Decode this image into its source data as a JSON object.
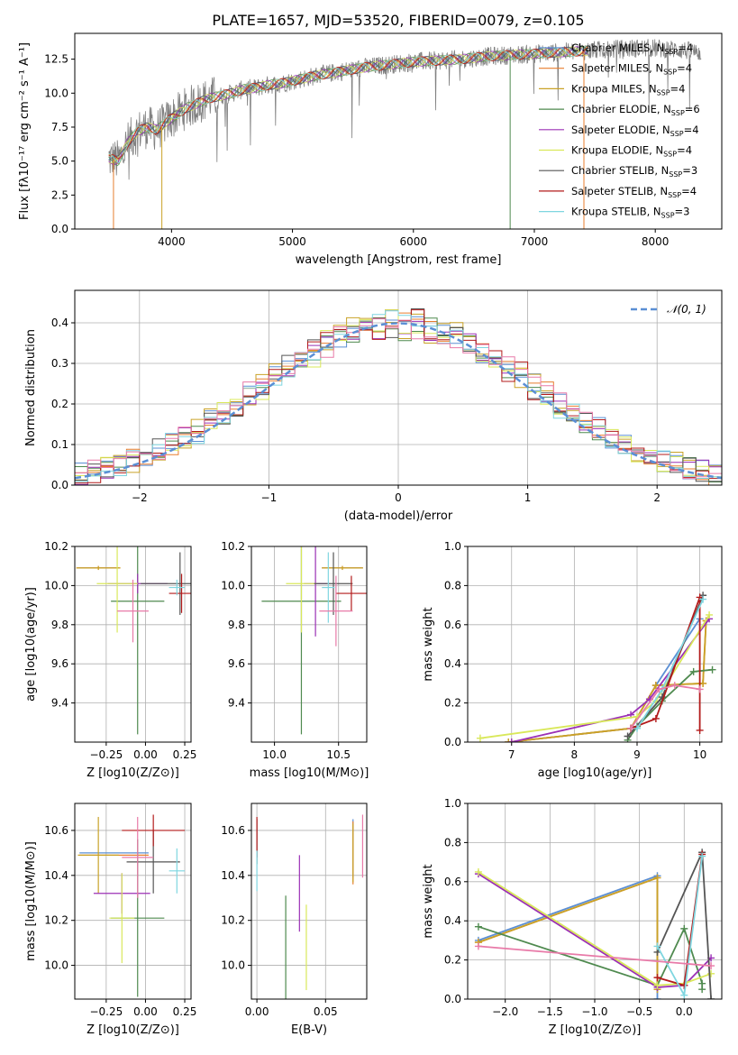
{
  "figure_title": "PLATE=1657, MJD=53520, FIBERID=0079, z=0.105",
  "series_colors": [
    "#5b8fd4",
    "#e87e2e",
    "#c9a227",
    "#4f8a4f",
    "#9b30b5",
    "#d9e85a",
    "#555555",
    "#b31b1b",
    "#7fd6e0",
    "#e87aa8"
  ],
  "chart_data": [
    {
      "id": "spectrum",
      "type": "line",
      "title": "PLATE=1657, MJD=53520, FIBERID=0079, z=0.105",
      "xlabel": "wavelength [Angstrom, rest frame]",
      "ylabel": "Flux [fλ10⁻¹⁷ erg cm⁻² s⁻¹ A⁻¹]",
      "xlim": [
        3200,
        8550
      ],
      "ylim": [
        0,
        14.4
      ],
      "xticks": [
        4000,
        5000,
        6000,
        7000,
        8000
      ],
      "yticks": [
        0.0,
        2.5,
        5.0,
        7.5,
        10.0,
        12.5
      ],
      "legend_position": "right",
      "legend": [
        "Chabrier MILES, NSSP=4",
        "Salpeter MILES, NSSP=4",
        "Kroupa MILES, NSSP=4",
        "Chabrier ELODIE, NSSP=6",
        "Salpeter ELODIE, NSSP=4",
        "Kroupa ELODIE, NSSP=4",
        "Chabrier STELIB, NSSP=3",
        "Salpeter STELIB, NSSP=4",
        "Kroupa STELIB, NSSP=3"
      ],
      "data_x": [
        3480,
        3560,
        3640,
        3720,
        3800,
        3880,
        3960,
        4040,
        4120,
        4200,
        4300,
        4400,
        4500,
        4600,
        4700,
        4800,
        4900,
        5000,
        5200,
        5400,
        5600,
        5800,
        6000,
        6200,
        6400,
        6600,
        6800,
        7000,
        7200,
        7400,
        7600,
        7800,
        8000,
        8200,
        8350
      ],
      "data_y": [
        5.2,
        5.0,
        6.4,
        7.2,
        7.5,
        7.3,
        7.9,
        8.4,
        8.9,
        9.2,
        9.6,
        9.8,
        10.0,
        10.3,
        10.4,
        10.6,
        10.7,
        10.9,
        11.3,
        11.6,
        11.9,
        12.1,
        12.3,
        12.4,
        12.5,
        12.7,
        12.8,
        12.9,
        13.0,
        13.1,
        13.2,
        13.3,
        13.3,
        13.2,
        13.0
      ],
      "model_x_range": [
        3480,
        7450
      ]
    },
    {
      "id": "residuals",
      "type": "histogram",
      "xlabel": "(data-model)/error",
      "ylabel": "Normed distribution",
      "xlim": [
        -2.5,
        2.5
      ],
      "ylim": [
        0,
        0.48
      ],
      "xticks": [
        -2,
        -1,
        0,
        1,
        2
      ],
      "yticks": [
        0.0,
        0.1,
        0.2,
        0.3,
        0.4
      ],
      "legend": [
        "𝒩(0, 1)"
      ],
      "legend_position": "top-right",
      "bin_width": 0.1,
      "reference_curve": "gaussian N(0,1)"
    },
    {
      "id": "age-vs-z",
      "type": "scatter",
      "xlabel": "Z [log10(Z/Z⊙)]",
      "ylabel": "age  [log10(age/yr)]",
      "xlim": [
        -0.45,
        0.29
      ],
      "ylim": [
        9.2,
        10.2
      ],
      "xticks": [
        -0.25,
        0.0,
        0.25
      ],
      "xticklabels": [
        "−0.25",
        "0.00",
        "0.25"
      ],
      "yticks": [
        9.4,
        9.6,
        9.8,
        10.0,
        10.2
      ],
      "points": [
        {
          "x": -0.3,
          "y": 10.09,
          "xerr": 0.13,
          "yerr": 0.0,
          "c": 0
        },
        {
          "x": -0.3,
          "y": 10.09,
          "xerr": 0.14,
          "yerr": 0.01,
          "c": 1
        },
        {
          "x": -0.3,
          "y": 10.09,
          "xerr": 0.14,
          "yerr": 0.01,
          "c": 2
        },
        {
          "x": -0.05,
          "y": 9.92,
          "xerr": 0.17,
          "yerr": 0.68,
          "c": 3
        },
        {
          "x": -0.05,
          "y": 10.01,
          "xerr": 0.19,
          "yerr": 0.05,
          "c": 4
        },
        {
          "x": -0.18,
          "y": 10.01,
          "xerr": 0.13,
          "yerr": 0.25,
          "c": 5
        },
        {
          "x": 0.22,
          "y": 10.01,
          "xerr": 0.25,
          "yerr": 0.16,
          "c": 6
        },
        {
          "x": 0.23,
          "y": 9.96,
          "xerr": 0.08,
          "yerr": 0.1,
          "c": 7
        },
        {
          "x": 0.2,
          "y": 9.99,
          "xerr": 0.05,
          "yerr": 0.04,
          "c": 8
        },
        {
          "x": -0.08,
          "y": 9.87,
          "xerr": 0.1,
          "yerr": 0.16,
          "c": 9
        }
      ]
    },
    {
      "id": "age-vs-mass",
      "type": "scatter",
      "xlabel": "mass [log10(M/M⊙)]",
      "ylabel": "",
      "xlim": [
        9.82,
        10.72
      ],
      "ylim": [
        9.2,
        10.2
      ],
      "xticks": [
        10.0,
        10.5
      ],
      "xticklabels": [
        "10.0",
        "10.5"
      ],
      "yticks": [
        9.4,
        9.6,
        9.8,
        10.0,
        10.2
      ],
      "points": [
        {
          "x": 10.53,
          "y": 10.09,
          "xerr": 0.16,
          "yerr": 0.0,
          "c": 0
        },
        {
          "x": 10.53,
          "y": 10.09,
          "xerr": 0.16,
          "yerr": 0.01,
          "c": 1
        },
        {
          "x": 10.53,
          "y": 10.09,
          "xerr": 0.16,
          "yerr": 0.01,
          "c": 2
        },
        {
          "x": 10.21,
          "y": 9.92,
          "xerr": 0.31,
          "yerr": 0.68,
          "c": 3
        },
        {
          "x": 10.32,
          "y": 10.01,
          "xerr": 0.09,
          "yerr": 0.27,
          "c": 4
        },
        {
          "x": 10.21,
          "y": 10.01,
          "xerr": 0.12,
          "yerr": 0.25,
          "c": 5
        },
        {
          "x": 10.46,
          "y": 10.01,
          "xerr": 0.15,
          "yerr": 0.16,
          "c": 6
        },
        {
          "x": 10.6,
          "y": 9.96,
          "xerr": 0.12,
          "yerr": 0.09,
          "c": 7
        },
        {
          "x": 10.42,
          "y": 9.99,
          "xerr": 0.05,
          "yerr": 0.18,
          "c": 8
        },
        {
          "x": 10.48,
          "y": 9.87,
          "xerr": 0.13,
          "yerr": 0.18,
          "c": 9
        }
      ]
    },
    {
      "id": "massweight-vs-age",
      "type": "line",
      "xlabel": "age  [log10(age/yr)]",
      "ylabel": "mass weight",
      "xlim": [
        6.3,
        10.35
      ],
      "ylim": [
        0,
        1.0
      ],
      "xticks": [
        7,
        8,
        9,
        10
      ],
      "yticks": [
        0.0,
        0.2,
        0.4,
        0.6,
        0.8,
        1.0
      ],
      "series": [
        {
          "c": 0,
          "points": [
            [
              6.95,
              0.0
            ],
            [
              8.9,
              0.07
            ],
            [
              9.3,
              0.29
            ],
            [
              10.0,
              0.63
            ]
          ]
        },
        {
          "c": 1,
          "points": [
            [
              6.95,
              0.0
            ],
            [
              8.9,
              0.07
            ],
            [
              9.3,
              0.29
            ],
            [
              10.05,
              0.3
            ],
            [
              10.1,
              0.62
            ]
          ]
        },
        {
          "c": 2,
          "points": [
            [
              6.95,
              0.0
            ],
            [
              8.9,
              0.07
            ],
            [
              9.3,
              0.29
            ],
            [
              10.05,
              0.3
            ],
            [
              10.1,
              0.62
            ]
          ]
        },
        {
          "c": 3,
          "points": [
            [
              8.85,
              0.01
            ],
            [
              9.0,
              0.08
            ],
            [
              9.4,
              0.21
            ],
            [
              9.9,
              0.36
            ],
            [
              10.2,
              0.37
            ]
          ]
        },
        {
          "c": 4,
          "points": [
            [
              7.0,
              0.0
            ],
            [
              8.9,
              0.14
            ],
            [
              9.2,
              0.22
            ],
            [
              10.15,
              0.63
            ]
          ]
        },
        {
          "c": 5,
          "points": [
            [
              6.5,
              0.02
            ],
            [
              9.0,
              0.13
            ],
            [
              9.3,
              0.21
            ],
            [
              10.15,
              0.65
            ]
          ]
        },
        {
          "c": 6,
          "points": [
            [
              8.85,
              0.03
            ],
            [
              9.4,
              0.23
            ],
            [
              10.05,
              0.75
            ]
          ]
        },
        {
          "c": 7,
          "points": [
            [
              8.9,
              0.07
            ],
            [
              9.3,
              0.12
            ],
            [
              10.0,
              0.74
            ],
            [
              10.0,
              0.06
            ]
          ]
        },
        {
          "c": 8,
          "points": [
            [
              9.0,
              0.07
            ],
            [
              9.4,
              0.27
            ],
            [
              10.05,
              0.73
            ]
          ]
        },
        {
          "c": 9,
          "points": [
            [
              8.9,
              0.07
            ],
            [
              9.35,
              0.27
            ],
            [
              9.6,
              0.29
            ],
            [
              10.0,
              0.27
            ]
          ]
        }
      ]
    },
    {
      "id": "mass-vs-z",
      "type": "scatter",
      "xlabel": "Z [log10(Z/Z⊙)]",
      "ylabel": "mass [log10(M/M⊙)]",
      "xlim": [
        -0.45,
        0.29
      ],
      "ylim": [
        9.85,
        10.72
      ],
      "xticks": [
        -0.25,
        0.0,
        0.25
      ],
      "xticklabels": [
        "−0.25",
        "0.00",
        "0.25"
      ],
      "yticks": [
        10.0,
        10.2,
        10.4,
        10.6
      ],
      "points": [
        {
          "x": -0.2,
          "y": 10.5,
          "xerr": 0.22,
          "yerr": 0.0,
          "c": 0
        },
        {
          "x": -0.2,
          "y": 10.49,
          "xerr": 0.22,
          "yerr": 0.0,
          "c": 1
        },
        {
          "x": -0.3,
          "y": 10.49,
          "xerr": 0.13,
          "yerr": 0.17,
          "c": 2
        },
        {
          "x": -0.05,
          "y": 10.21,
          "xerr": 0.17,
          "yerr": 0.35,
          "c": 3
        },
        {
          "x": -0.15,
          "y": 10.32,
          "xerr": 0.18,
          "yerr": 0.09,
          "c": 4
        },
        {
          "x": -0.15,
          "y": 10.21,
          "xerr": 0.08,
          "yerr": 0.2,
          "c": 5
        },
        {
          "x": 0.05,
          "y": 10.46,
          "xerr": 0.17,
          "yerr": 0.14,
          "c": 6
        },
        {
          "x": 0.05,
          "y": 10.6,
          "xerr": 0.2,
          "yerr": 0.07,
          "c": 7
        },
        {
          "x": 0.2,
          "y": 10.42,
          "xerr": 0.05,
          "yerr": 0.1,
          "c": 8
        },
        {
          "x": -0.05,
          "y": 10.48,
          "xerr": 0.1,
          "yerr": 0.18,
          "c": 9
        }
      ]
    },
    {
      "id": "mass-vs-ebv",
      "type": "scatter",
      "xlabel": "E(B-V)",
      "ylabel": "",
      "xlim": [
        -0.004,
        0.08
      ],
      "ylim": [
        9.85,
        10.72
      ],
      "xticks": [
        0.0,
        0.05
      ],
      "xticklabels": [
        "0.00",
        "0.05"
      ],
      "yticks": [
        10.0,
        10.2,
        10.4,
        10.6
      ],
      "points": [
        {
          "x": 0.07,
          "y": 10.52,
          "xerr": 0.0,
          "yerr": 0.13,
          "c": 0
        },
        {
          "x": 0.07,
          "y": 10.5,
          "xerr": 0.0,
          "yerr": 0.14,
          "c": 1
        },
        {
          "x": 0.07,
          "y": 10.5,
          "xerr": 0.0,
          "yerr": 0.13,
          "c": 2
        },
        {
          "x": 0.021,
          "y": 10.05,
          "xerr": 0.0,
          "yerr": 0.26,
          "c": 3
        },
        {
          "x": 0.031,
          "y": 10.32,
          "xerr": 0.0,
          "yerr": 0.17,
          "c": 4
        },
        {
          "x": 0.036,
          "y": 10.08,
          "xerr": 0.0,
          "yerr": 0.19,
          "c": 5
        },
        {
          "x": 0.0,
          "y": 10.55,
          "xerr": 0.0,
          "yerr": 0.1,
          "c": 6
        },
        {
          "x": 0.0,
          "y": 10.57,
          "xerr": 0.0,
          "yerr": 0.09,
          "c": 7
        },
        {
          "x": 0.0,
          "y": 10.42,
          "xerr": 0.0,
          "yerr": 0.09,
          "c": 8
        },
        {
          "x": 0.077,
          "y": 10.53,
          "xerr": 0.0,
          "yerr": 0.14,
          "c": 9
        }
      ]
    },
    {
      "id": "massweight-vs-z",
      "type": "line",
      "xlabel": "Z [log10(Z/Z⊙)]",
      "ylabel": "mass weight",
      "xlim": [
        -2.42,
        0.42
      ],
      "ylim": [
        0,
        1.0
      ],
      "xticks": [
        -2.0,
        -1.5,
        -1.0,
        -0.5,
        0.0
      ],
      "xticklabels": [
        "−2.0",
        "−1.5",
        "−1.0",
        "−0.5",
        "0.0"
      ],
      "yticks": [
        0.0,
        0.2,
        0.4,
        0.6,
        0.8,
        1.0
      ],
      "series": [
        {
          "c": 0,
          "points": [
            [
              -2.3,
              0.3
            ],
            [
              -0.3,
              0.63
            ],
            [
              -0.3,
              0.0
            ]
          ]
        },
        {
          "c": 1,
          "points": [
            [
              -2.3,
              0.29
            ],
            [
              -0.3,
              0.62
            ],
            [
              -0.3,
              0.05
            ]
          ]
        },
        {
          "c": 2,
          "points": [
            [
              -2.3,
              0.29
            ],
            [
              -0.3,
              0.62
            ],
            [
              -0.3,
              0.05
            ]
          ]
        },
        {
          "c": 3,
          "points": [
            [
              -2.3,
              0.37
            ],
            [
              -0.3,
              0.07
            ],
            [
              0.0,
              0.36
            ],
            [
              0.2,
              0.08
            ],
            [
              0.2,
              0.05
            ]
          ]
        },
        {
          "c": 4,
          "points": [
            [
              -2.3,
              0.64
            ],
            [
              -0.3,
              0.06
            ],
            [
              0.0,
              0.07
            ],
            [
              0.3,
              0.21
            ]
          ]
        },
        {
          "c": 5,
          "points": [
            [
              -2.3,
              0.65
            ],
            [
              -0.3,
              0.07
            ],
            [
              0.0,
              0.08
            ],
            [
              0.3,
              0.13
            ]
          ]
        },
        {
          "c": 6,
          "points": [
            [
              -0.3,
              0.24
            ],
            [
              0.2,
              0.75
            ],
            [
              0.3,
              0.0
            ]
          ]
        },
        {
          "c": 7,
          "points": [
            [
              -0.3,
              0.11
            ],
            [
              0.0,
              0.07
            ],
            [
              0.2,
              0.74
            ]
          ]
        },
        {
          "c": 8,
          "points": [
            [
              -0.3,
              0.27
            ],
            [
              0.0,
              0.02
            ],
            [
              0.2,
              0.73
            ]
          ]
        },
        {
          "c": 9,
          "points": [
            [
              -2.3,
              0.27
            ],
            [
              0.3,
              0.17
            ]
          ]
        }
      ]
    }
  ]
}
